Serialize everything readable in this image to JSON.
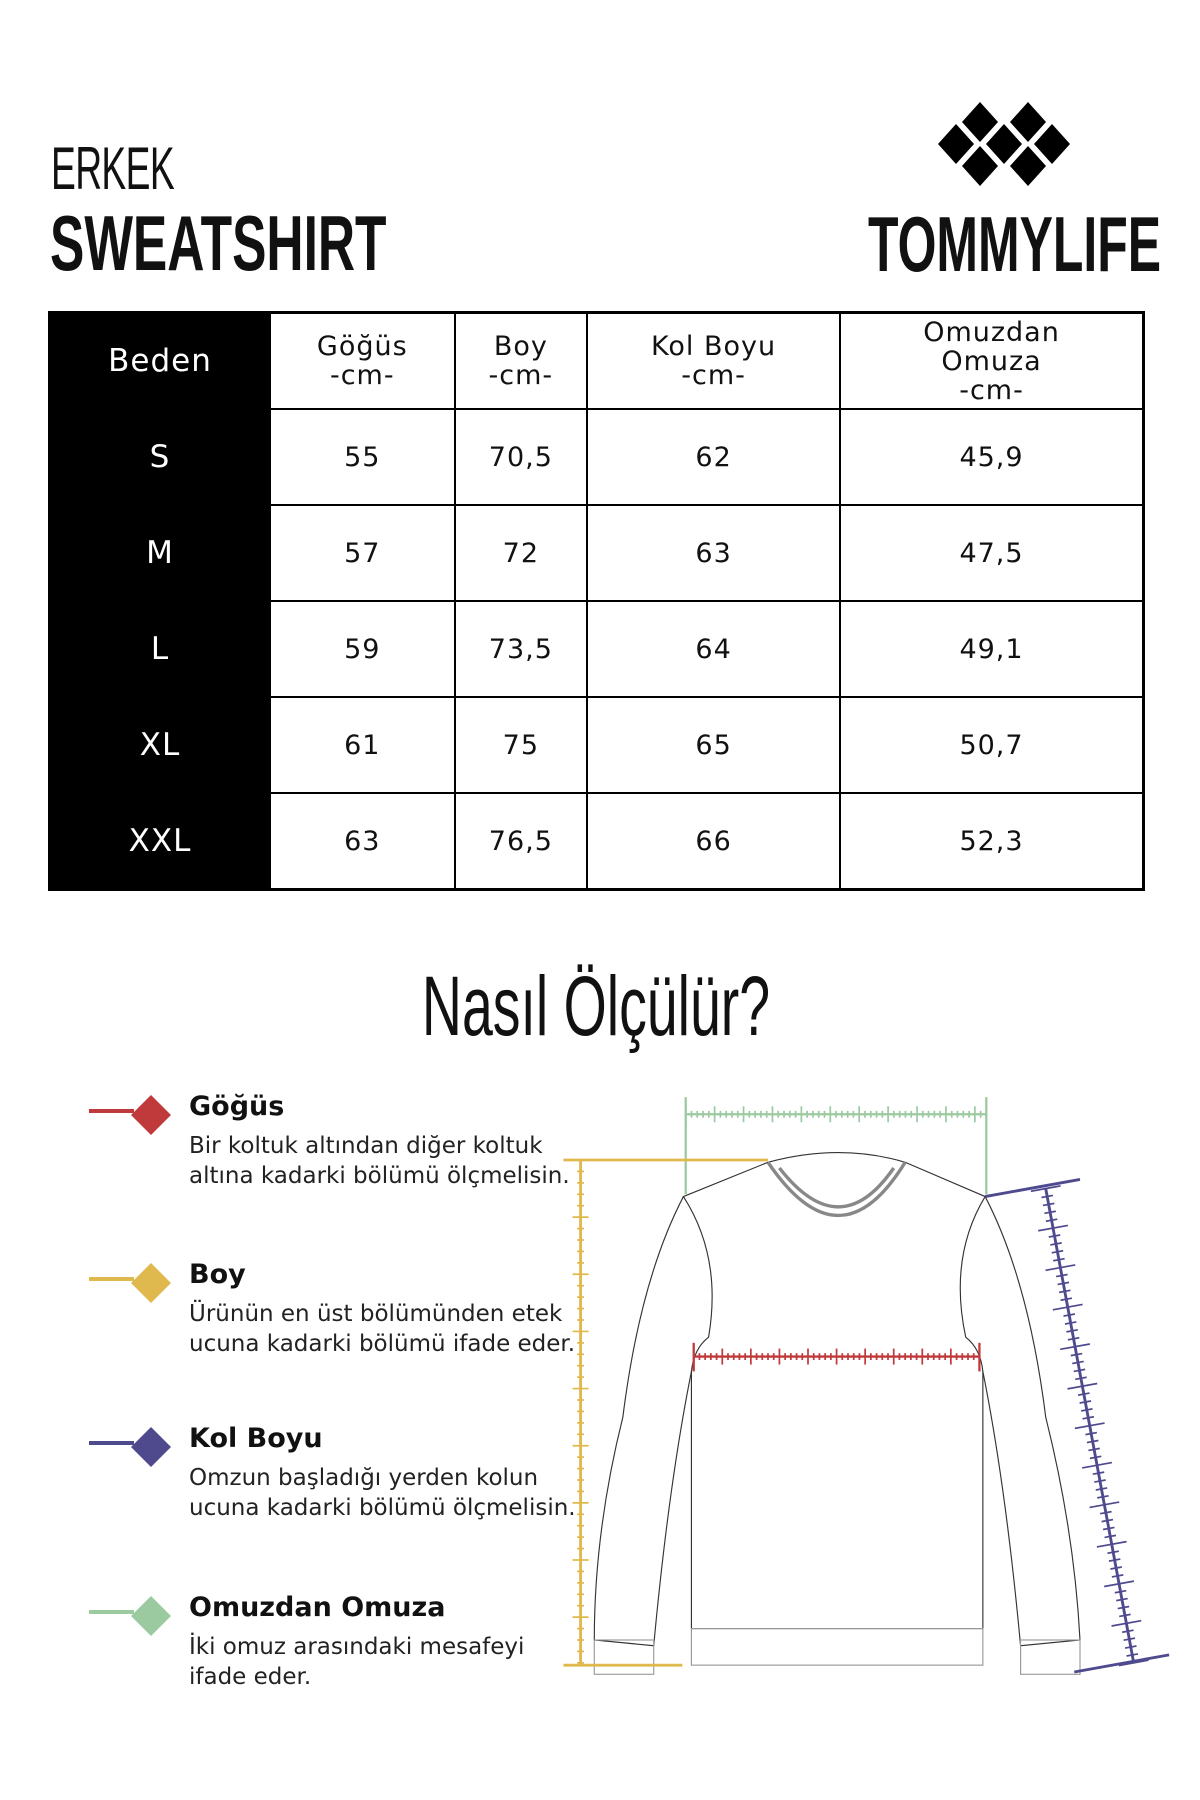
{
  "header": {
    "category": "ERKEK",
    "product": "SWEATSHIRT",
    "brand": "TOMMYLIFE"
  },
  "table": {
    "columns": [
      {
        "name": "Beden",
        "unit": ""
      },
      {
        "name": "Göğüs",
        "unit": "-cm-"
      },
      {
        "name": "Boy",
        "unit": "-cm-"
      },
      {
        "name": "Kol Boyu",
        "unit": "-cm-"
      },
      {
        "name": "Omuzdan Omuza",
        "unit": "-cm-"
      }
    ],
    "rows": [
      [
        "S",
        "55",
        "70,5",
        "62",
        "45,9"
      ],
      [
        "M",
        "57",
        "72",
        "63",
        "47,5"
      ],
      [
        "L",
        "59",
        "73,5",
        "64",
        "49,1"
      ],
      [
        "XL",
        "61",
        "75",
        "65",
        "50,7"
      ],
      [
        "XXL",
        "63",
        "76,5",
        "66",
        "52,3"
      ]
    ]
  },
  "howto": {
    "title": "Nasıl Ölçülür?",
    "items": [
      {
        "title": "Göğüs",
        "text": "Bir koltuk altından diğer koltuk altına kadarki bölümü ölçmelisin.",
        "color": "#c0393b"
      },
      {
        "title": "Boy",
        "text": "Ürünün en üst bölümünden etek ucuna kadarki bölümü ifade eder.",
        "color": "#e0b94e"
      },
      {
        "title": "Kol Boyu",
        "text": "Omzun başladığı yerden kolun ucuna kadarki bölümü ölçmelisin.",
        "color": "#4f4a8e"
      },
      {
        "title": "Omuzdan Omuza",
        "text": "İki omuz arasındaki mesafeyi ifade eder.",
        "color": "#9ccaa0"
      }
    ]
  }
}
